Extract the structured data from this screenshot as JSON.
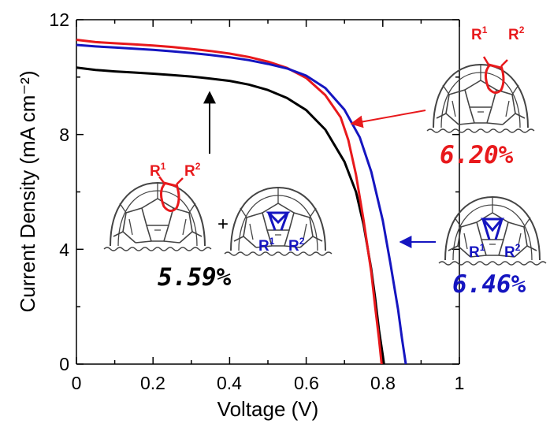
{
  "chart_data": {
    "type": "line",
    "xlabel": "Voltage (V)",
    "ylabel": "Current Density (mA cm⁻²)",
    "xlim": [
      0,
      1
    ],
    "ylim": [
      0,
      12
    ],
    "x_ticks": [
      "0",
      "0.2",
      "0.4",
      "0.6",
      "0.8",
      "1"
    ],
    "y_ticks": [
      "0",
      "4",
      "8",
      "12"
    ],
    "grid": false,
    "series": [
      {
        "color": "#000000",
        "points": [
          [
            0,
            10.33
          ],
          [
            0.05,
            10.25
          ],
          [
            0.1,
            10.2
          ],
          [
            0.15,
            10.16
          ],
          [
            0.2,
            10.12
          ],
          [
            0.25,
            10.07
          ],
          [
            0.3,
            10.02
          ],
          [
            0.35,
            9.95
          ],
          [
            0.4,
            9.87
          ],
          [
            0.45,
            9.74
          ],
          [
            0.5,
            9.55
          ],
          [
            0.55,
            9.27
          ],
          [
            0.6,
            8.85
          ],
          [
            0.65,
            8.17
          ],
          [
            0.7,
            7.05
          ],
          [
            0.73,
            6.0
          ],
          [
            0.75,
            4.85
          ],
          [
            0.77,
            3.3
          ],
          [
            0.78,
            2.3
          ],
          [
            0.79,
            1.2
          ],
          [
            0.8,
            0.3
          ],
          [
            0.803,
            0
          ]
        ]
      },
      {
        "color": "#e8191c",
        "points": [
          [
            0,
            11.3
          ],
          [
            0.05,
            11.22
          ],
          [
            0.1,
            11.18
          ],
          [
            0.15,
            11.14
          ],
          [
            0.2,
            11.1
          ],
          [
            0.25,
            11.05
          ],
          [
            0.3,
            10.98
          ],
          [
            0.35,
            10.91
          ],
          [
            0.4,
            10.82
          ],
          [
            0.45,
            10.7
          ],
          [
            0.5,
            10.54
          ],
          [
            0.55,
            10.32
          ],
          [
            0.6,
            9.97
          ],
          [
            0.65,
            9.37
          ],
          [
            0.69,
            8.6
          ],
          [
            0.71,
            7.8
          ],
          [
            0.73,
            6.6
          ],
          [
            0.75,
            5.0
          ],
          [
            0.77,
            3.2
          ],
          [
            0.78,
            2.0
          ],
          [
            0.79,
            0.9
          ],
          [
            0.797,
            0
          ]
        ]
      },
      {
        "color": "#1515c0",
        "points": [
          [
            0,
            11.12
          ],
          [
            0.05,
            11.07
          ],
          [
            0.1,
            11.03
          ],
          [
            0.15,
            10.99
          ],
          [
            0.2,
            10.95
          ],
          [
            0.25,
            10.9
          ],
          [
            0.3,
            10.84
          ],
          [
            0.35,
            10.77
          ],
          [
            0.4,
            10.69
          ],
          [
            0.45,
            10.59
          ],
          [
            0.5,
            10.46
          ],
          [
            0.55,
            10.3
          ],
          [
            0.6,
            10.05
          ],
          [
            0.65,
            9.62
          ],
          [
            0.7,
            8.86
          ],
          [
            0.74,
            7.9
          ],
          [
            0.77,
            6.7
          ],
          [
            0.8,
            5.0
          ],
          [
            0.82,
            3.5
          ],
          [
            0.84,
            1.9
          ],
          [
            0.85,
            0.9
          ],
          [
            0.86,
            0
          ]
        ]
      }
    ],
    "annotations": {
      "black_pct": "5.59%",
      "red_pct": "6.20%",
      "blue_pct": "6.46%",
      "plus": "+",
      "r1": "R",
      "r1_sup": "1",
      "r2": "R",
      "r2_sup": "2"
    }
  }
}
